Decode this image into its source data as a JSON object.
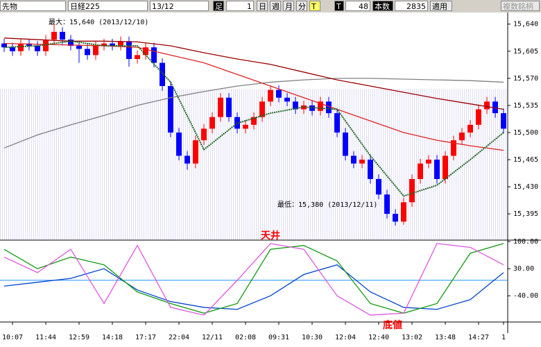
{
  "toolbar": {
    "product": "先物",
    "index": "日経225",
    "contract": "13/12",
    "bar_label": "足",
    "bar_size": "1",
    "day": "日",
    "week": "週",
    "month": "月",
    "minute": "分",
    "tick1": "T",
    "tick2": "T",
    "tick_count": "48",
    "count_label": "本数",
    "count": "2835",
    "apply": "適用",
    "multi": "複数銘柄"
  },
  "chart_data": {
    "type": "candlestick",
    "categories": [
      null,
      "10:07",
      null,
      null,
      null,
      "11:44",
      null,
      null,
      null,
      "12:59",
      null,
      null,
      null,
      "14:18",
      null,
      null,
      null,
      "17:17",
      null,
      null,
      null,
      "22:04",
      null,
      null,
      null,
      "12/11",
      null,
      null,
      null,
      "02:08",
      null,
      null,
      null,
      "09:31",
      null,
      null,
      null,
      "10:30",
      null,
      null,
      null,
      "12:04",
      null,
      null,
      null,
      "12:40",
      null,
      null,
      null,
      "13:02",
      null,
      null,
      null,
      "13:48",
      null,
      null,
      null,
      "14:27",
      null,
      null,
      "1"
    ],
    "open": [
      15615,
      15610,
      15605,
      15615,
      15612,
      15605,
      15620,
      15630,
      15620,
      15612,
      15608,
      15600,
      15612,
      15615,
      15612,
      15618,
      15595,
      15600,
      15610,
      15590,
      15560,
      15500,
      15470,
      15460,
      15490,
      15505,
      15520,
      15545,
      15520,
      15505,
      15510,
      15520,
      15540,
      15555,
      15545,
      15540,
      15530,
      15535,
      15528,
      15540,
      15525,
      15500,
      15470,
      15460,
      15465,
      15440,
      15420,
      15395,
      15385,
      15410,
      15440,
      15460,
      15465,
      15440,
      15470,
      15490,
      15500,
      15510,
      15530,
      15540,
      15525
    ],
    "high": [
      15621,
      15616,
      15621,
      15621,
      15618,
      15626,
      15640,
      15636,
      15626,
      15618,
      15614,
      15618,
      15621,
      15621,
      15624,
      15624,
      15606,
      15616,
      15616,
      15596,
      15566,
      15506,
      15476,
      15496,
      15511,
      15526,
      15551,
      15551,
      15526,
      15516,
      15526,
      15546,
      15561,
      15561,
      15551,
      15546,
      15541,
      15541,
      15546,
      15546,
      15531,
      15506,
      15476,
      15471,
      15471,
      15446,
      15426,
      15401,
      15416,
      15446,
      15466,
      15471,
      15471,
      15476,
      15496,
      15506,
      15516,
      15536,
      15546,
      15546,
      15531
    ],
    "low": [
      15604,
      15599,
      15599,
      15606,
      15599,
      15599,
      15614,
      15614,
      15606,
      15590,
      15594,
      15594,
      15606,
      15606,
      15606,
      15585,
      15589,
      15594,
      15584,
      15554,
      15494,
      15464,
      15452,
      15454,
      15484,
      15499,
      15514,
      15514,
      15499,
      15499,
      15504,
      15514,
      15534,
      15539,
      15534,
      15524,
      15524,
      15522,
      15522,
      15519,
      15494,
      15464,
      15454,
      15454,
      15434,
      15414,
      15389,
      15380,
      15381,
      15404,
      15434,
      15454,
      15434,
      15434,
      15464,
      15484,
      15494,
      15504,
      15524,
      15519,
      15499
    ],
    "close": [
      15610,
      15605,
      15615,
      15612,
      15605,
      15620,
      15630,
      15620,
      15612,
      15608,
      15600,
      15612,
      15615,
      15612,
      15618,
      15595,
      15600,
      15610,
      15590,
      15560,
      15500,
      15470,
      15460,
      15490,
      15505,
      15520,
      15545,
      15520,
      15505,
      15510,
      15520,
      15540,
      15555,
      15545,
      15540,
      15530,
      15535,
      15528,
      15540,
      15525,
      15500,
      15470,
      15460,
      15465,
      15440,
      15420,
      15395,
      15385,
      15410,
      15440,
      15460,
      15465,
      15440,
      15470,
      15490,
      15500,
      15510,
      15530,
      15540,
      15525,
      15505
    ],
    "up_color": "#ff0000",
    "down_color": "#0000ff",
    "ylim": [
      15362,
      15655
    ],
    "yticks": [
      {
        "value": 15395,
        "label": "15,395"
      },
      {
        "value": 15430,
        "label": "15,430"
      },
      {
        "value": 15465,
        "label": "15,465"
      },
      {
        "value": 15500,
        "label": "15,500"
      },
      {
        "value": 15535,
        "label": "15,535"
      },
      {
        "value": 15570,
        "label": "15,570"
      },
      {
        "value": 15605,
        "label": "15,605"
      },
      {
        "value": 15640,
        "label": "15,640"
      }
    ],
    "lines": [
      {
        "color": "#808080",
        "style": "solid",
        "x": [
          0,
          4,
          8,
          12,
          16,
          20,
          24,
          28,
          32,
          36,
          40,
          44,
          48,
          52,
          56,
          60
        ],
        "values": [
          15480,
          15497,
          15510,
          15522,
          15535,
          15545,
          15553,
          15560,
          15565,
          15568,
          15570,
          15570,
          15569,
          15568,
          15567,
          15565
        ]
      },
      {
        "color": "#990000",
        "style": "solid",
        "x": [
          0,
          4,
          8,
          12,
          16,
          20,
          24,
          28,
          32,
          36,
          40,
          44,
          48,
          52,
          56,
          60
        ],
        "values": [
          15622,
          15620,
          15618,
          15618,
          15617,
          15612,
          15603,
          15595,
          15588,
          15578,
          15568,
          15560,
          15552,
          15544,
          15537,
          15530
        ]
      },
      {
        "color": "#dd2222",
        "style": "solid",
        "x": [
          0,
          4,
          8,
          12,
          16,
          20,
          24,
          28,
          32,
          36,
          40,
          44,
          48,
          52,
          56,
          60
        ],
        "values": [
          15615,
          15614,
          15613,
          15612,
          15610,
          15600,
          15590,
          15575,
          15560,
          15545,
          15530,
          15515,
          15500,
          15490,
          15483,
          15477
        ]
      },
      {
        "color": "#226622",
        "style": "dotted",
        "x": [
          0,
          4,
          8,
          12,
          16,
          20,
          24,
          28,
          32,
          36,
          40,
          44,
          48,
          52,
          56,
          60
        ],
        "values": [
          15610,
          15612,
          15618,
          15612,
          15612,
          15565,
          15478,
          15512,
          15525,
          15533,
          15530,
          15470,
          15418,
          15432,
          15465,
          15500
        ]
      }
    ],
    "max_annotation": "最大：15,640 (2013/12/10)",
    "min_annotation": "最低：15,380 (2013/12/11)",
    "top_label": "天井",
    "bottom_label": "底値",
    "oscillator": {
      "ylim": [
        -106,
        102
      ],
      "yticks": [
        {
          "value": 100,
          "label": "100.00"
        },
        {
          "value": 30,
          "label": "30.00"
        },
        {
          "value": -40,
          "label": "-40.00"
        }
      ],
      "hline": 0,
      "hline_color": "#1e90ff",
      "lines": [
        {
          "color": "#0044cc",
          "x": [
            0,
            4,
            8,
            12,
            16,
            20,
            24,
            28,
            32,
            36,
            40,
            44,
            48,
            52,
            56,
            60
          ],
          "values": [
            -15,
            -5,
            5,
            30,
            -25,
            -55,
            -70,
            -75,
            -40,
            15,
            40,
            -30,
            -70,
            -75,
            -50,
            20
          ]
        },
        {
          "color": "#119911",
          "x": [
            0,
            4,
            8,
            12,
            16,
            20,
            24,
            28,
            32,
            36,
            40,
            44,
            48,
            52,
            56,
            60
          ],
          "values": [
            80,
            30,
            60,
            40,
            -30,
            -60,
            -85,
            -60,
            80,
            90,
            50,
            -60,
            -85,
            -60,
            70,
            95
          ]
        },
        {
          "color": "#dd55dd",
          "x": [
            0,
            4,
            8,
            12,
            16,
            20,
            24,
            28,
            32,
            36,
            40,
            44,
            48,
            52,
            56,
            60
          ],
          "values": [
            60,
            20,
            80,
            -60,
            90,
            -70,
            -90,
            0,
            95,
            80,
            -40,
            -90,
            -85,
            95,
            85,
            40
          ]
        }
      ]
    }
  }
}
